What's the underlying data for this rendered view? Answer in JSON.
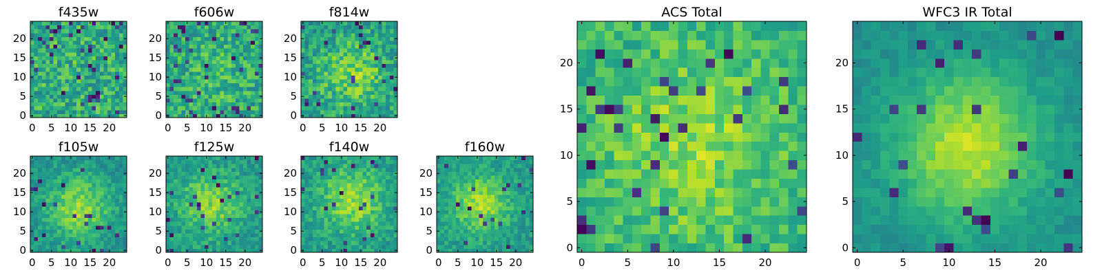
{
  "chart_data": [
    {
      "type": "heatmap",
      "title": "f435w",
      "xticks": [
        "0",
        "5",
        "10",
        "15",
        "20"
      ],
      "yticks": [
        "0",
        "5",
        "10",
        "15",
        "20"
      ],
      "xlim": [
        -0.5,
        24.5
      ],
      "ylim": [
        -0.5,
        24.5
      ],
      "grid_size": [
        25,
        25
      ],
      "colormap": "viridis",
      "vmin": 0,
      "vmax": 1,
      "structure": {
        "peak": [
          12,
          12
        ],
        "sigma": 14,
        "amplitude": 0.05,
        "base": 0.58,
        "noise": 0.32,
        "dark_fraction": 0.06
      }
    },
    {
      "type": "heatmap",
      "title": "f606w",
      "xticks": [
        "0",
        "5",
        "10",
        "15",
        "20"
      ],
      "yticks": [
        "0",
        "5",
        "10",
        "15",
        "20"
      ],
      "xlim": [
        -0.5,
        24.5
      ],
      "ylim": [
        -0.5,
        24.5
      ],
      "grid_size": [
        25,
        25
      ],
      "colormap": "viridis",
      "vmin": 0,
      "vmax": 1,
      "structure": {
        "peak": [
          12,
          10
        ],
        "sigma": 8,
        "amplitude": 0.1,
        "base": 0.57,
        "noise": 0.3,
        "dark_fraction": 0.06
      }
    },
    {
      "type": "heatmap",
      "title": "f814w",
      "xticks": [
        "0",
        "5",
        "10",
        "15",
        "20"
      ],
      "yticks": [
        "0",
        "5",
        "10",
        "15",
        "20"
      ],
      "xlim": [
        -0.5,
        24.5
      ],
      "ylim": [
        -0.5,
        24.5
      ],
      "grid_size": [
        25,
        25
      ],
      "colormap": "viridis",
      "vmin": 0,
      "vmax": 1,
      "structure": {
        "peak": [
          13,
          11
        ],
        "sigma": 6,
        "amplitude": 0.24,
        "base": 0.56,
        "noise": 0.28,
        "dark_fraction": 0.05
      }
    },
    {
      "type": "heatmap",
      "title": "f105w",
      "xticks": [
        "0",
        "5",
        "10",
        "15",
        "20"
      ],
      "yticks": [
        "0",
        "5",
        "10",
        "15",
        "20"
      ],
      "xlim": [
        -0.5,
        24.5
      ],
      "ylim": [
        -0.5,
        24.5
      ],
      "grid_size": [
        25,
        25
      ],
      "colormap": "viridis",
      "vmin": 0,
      "vmax": 1,
      "structure": {
        "peak": [
          12,
          11
        ],
        "sigma": 6,
        "amplitude": 0.34,
        "base": 0.5,
        "noise": 0.18,
        "dark_fraction": 0.03
      }
    },
    {
      "type": "heatmap",
      "title": "f125w",
      "xticks": [
        "0",
        "5",
        "10",
        "15",
        "20"
      ],
      "yticks": [
        "0",
        "5",
        "10",
        "15",
        "20"
      ],
      "xlim": [
        -0.5,
        24.5
      ],
      "ylim": [
        -0.5,
        24.5
      ],
      "grid_size": [
        25,
        25
      ],
      "colormap": "viridis",
      "vmin": 0,
      "vmax": 1,
      "structure": {
        "peak": [
          11,
          12
        ],
        "sigma": 6,
        "amplitude": 0.3,
        "base": 0.52,
        "noise": 0.2,
        "dark_fraction": 0.04
      }
    },
    {
      "type": "heatmap",
      "title": "f140w",
      "xticks": [
        "0",
        "5",
        "10",
        "15",
        "20"
      ],
      "yticks": [
        "0",
        "5",
        "10",
        "15",
        "20"
      ],
      "xlim": [
        -0.5,
        24.5
      ],
      "ylim": [
        -0.5,
        24.5
      ],
      "grid_size": [
        25,
        25
      ],
      "colormap": "viridis",
      "vmin": 0,
      "vmax": 1,
      "structure": {
        "peak": [
          13,
          13
        ],
        "sigma": 6,
        "amplitude": 0.3,
        "base": 0.54,
        "noise": 0.2,
        "dark_fraction": 0.04
      }
    },
    {
      "type": "heatmap",
      "title": "f160w",
      "xticks": [
        "0",
        "5",
        "10",
        "15",
        "20"
      ],
      "yticks": [
        "0",
        "5",
        "10",
        "15",
        "20"
      ],
      "xlim": [
        -0.5,
        24.5
      ],
      "ylim": [
        -0.5,
        24.5
      ],
      "grid_size": [
        25,
        25
      ],
      "colormap": "viridis",
      "vmin": 0,
      "vmax": 1,
      "structure": {
        "peak": [
          11,
          12
        ],
        "sigma": 5,
        "amplitude": 0.32,
        "base": 0.55,
        "noise": 0.18,
        "dark_fraction": 0.03
      }
    },
    {
      "type": "heatmap",
      "title": "ACS Total",
      "xticks": [
        "0",
        "5",
        "10",
        "15",
        "20"
      ],
      "yticks": [
        "0",
        "5",
        "10",
        "15",
        "20"
      ],
      "xlim": [
        -0.5,
        24.5
      ],
      "ylim": [
        -0.5,
        24.5
      ],
      "grid_size": [
        25,
        25
      ],
      "colormap": "viridis",
      "vmin": 0,
      "vmax": 1,
      "structure": {
        "peak": [
          12,
          11
        ],
        "sigma": 7,
        "amplitude": 0.2,
        "base": 0.64,
        "noise": 0.22,
        "dark_fraction": 0.05
      }
    },
    {
      "type": "heatmap",
      "title": "WFC3 IR Total",
      "xticks": [
        "0",
        "5",
        "10",
        "15",
        "20"
      ],
      "yticks": [
        "0",
        "5",
        "10",
        "15",
        "20"
      ],
      "xlim": [
        -0.5,
        24.5
      ],
      "ylim": [
        -0.5,
        24.5
      ],
      "grid_size": [
        25,
        25
      ],
      "colormap": "viridis",
      "vmin": 0,
      "vmax": 1,
      "structure": {
        "peak": [
          12,
          11
        ],
        "sigma": 5.5,
        "amplitude": 0.4,
        "base": 0.5,
        "noise": 0.1,
        "dark_fraction": 0.02
      }
    }
  ],
  "colormap_stops": [
    "#440154",
    "#482878",
    "#3e4989",
    "#31688e",
    "#26828e",
    "#1f9e89",
    "#35b779",
    "#6ece58",
    "#b5de2b",
    "#fde725"
  ]
}
